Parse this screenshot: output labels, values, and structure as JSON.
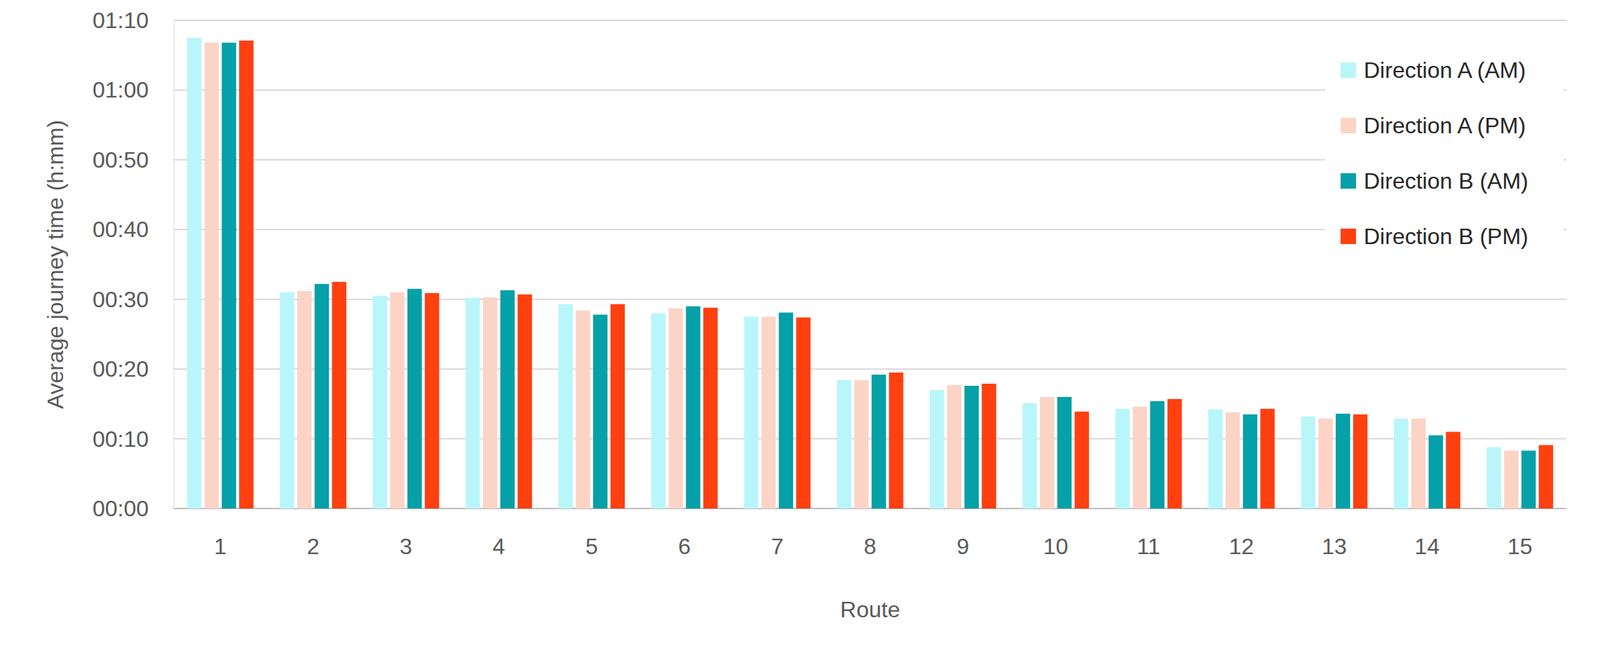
{
  "chart_data": {
    "type": "bar",
    "x_label": "Route",
    "y_label": "Average journey time (h:mm)",
    "categories": [
      "1",
      "2",
      "3",
      "4",
      "5",
      "6",
      "7",
      "8",
      "9",
      "10",
      "11",
      "12",
      "13",
      "14",
      "15"
    ],
    "series": [
      {
        "name": "Direction A (AM)",
        "color": "#b8f6fa",
        "values": [
          67.5,
          31.0,
          30.5,
          30.2,
          29.3,
          28.0,
          27.5,
          18.4,
          17.0,
          15.1,
          14.3,
          14.2,
          13.2,
          12.9,
          8.8
        ]
      },
      {
        "name": "Direction A (PM)",
        "color": "#fcd4c6",
        "values": [
          66.8,
          31.2,
          31.0,
          30.3,
          28.4,
          28.7,
          27.5,
          18.4,
          17.7,
          16.0,
          14.6,
          13.8,
          12.9,
          12.9,
          8.3
        ]
      },
      {
        "name": "Direction B (AM)",
        "color": "#05a0a8",
        "values": [
          66.8,
          32.2,
          31.5,
          31.3,
          27.8,
          29.0,
          28.1,
          19.2,
          17.6,
          16.0,
          15.4,
          13.5,
          13.6,
          10.5,
          8.3
        ]
      },
      {
        "name": "Direction B (PM)",
        "color": "#ff4010",
        "values": [
          67.1,
          32.5,
          30.9,
          30.7,
          29.3,
          28.8,
          27.4,
          19.5,
          17.9,
          13.9,
          15.7,
          14.3,
          13.5,
          11.0,
          9.1
        ]
      }
    ],
    "ylim": [
      0,
      70
    ],
    "yticks": [
      {
        "value": 0,
        "label": "00:00"
      },
      {
        "value": 10,
        "label": "00:10"
      },
      {
        "value": 20,
        "label": "00:20"
      },
      {
        "value": 30,
        "label": "00:30"
      },
      {
        "value": 40,
        "label": "00:40"
      },
      {
        "value": 50,
        "label": "00:50"
      },
      {
        "value": 60,
        "label": "01:00"
      },
      {
        "value": 70,
        "label": "01:10"
      }
    ],
    "grid": true,
    "legend": "top-right"
  }
}
